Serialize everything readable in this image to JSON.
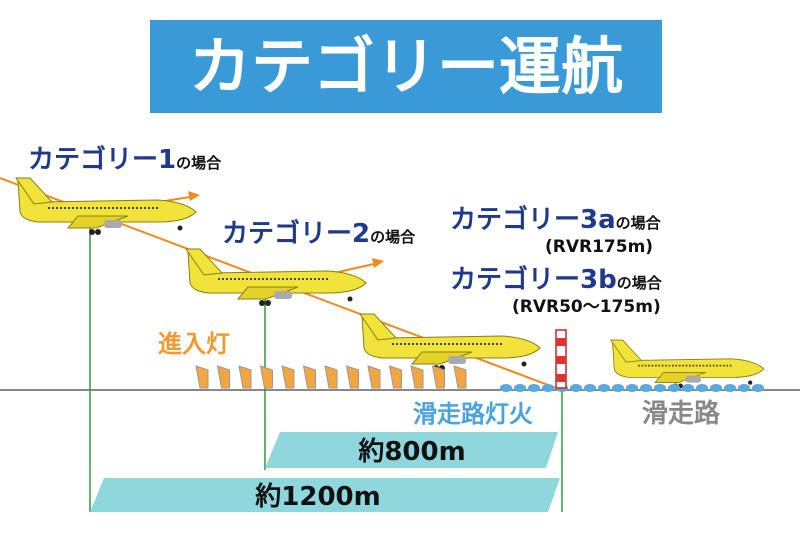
{
  "title": "カテゴリー運航",
  "categories": [
    {
      "name": "カテゴリー1",
      "suffix": "の場合"
    },
    {
      "name": "カテゴリー2",
      "suffix": "の場合"
    },
    {
      "name": "カテゴリー3a",
      "suffix": "の場合",
      "note": "(RVR175m)"
    },
    {
      "name": "カテゴリー3b",
      "suffix": "の場合",
      "note": "(RVR50～175m)"
    }
  ],
  "labels": {
    "approach_lights": "進入灯",
    "runway_lights": "滑走路灯火",
    "runway": "滑走路"
  },
  "distances": [
    "約800m",
    "約1200m"
  ]
}
